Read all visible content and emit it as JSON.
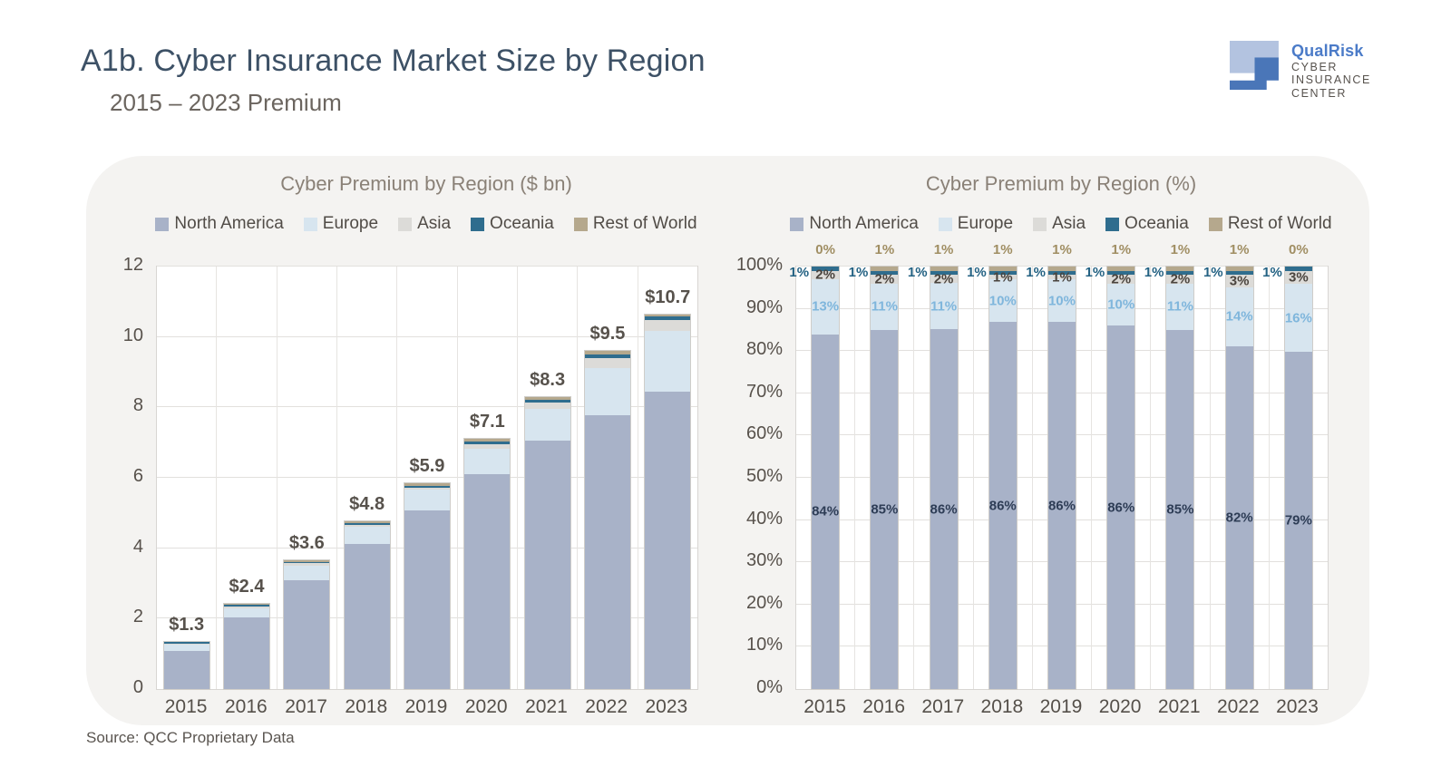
{
  "header": {
    "title": "A1b. Cyber Insurance Market Size by Region",
    "subtitle": "2015 – 2023 Premium"
  },
  "logo": {
    "brand": "QualRisk",
    "lines": [
      "CYBER",
      "INSURANCE",
      "CENTER"
    ],
    "light_color": "#b3c3e0",
    "dark_color": "#4a76b8"
  },
  "source": "Source: QCC Proprietary Data",
  "colors": {
    "series": {
      "North America": "#a8b2c8",
      "Europe": "#d7e5ef",
      "Asia": "#dcdbd8",
      "Oceania": "#2f6d8e",
      "Rest of World": "#b5a88d"
    },
    "labels": {
      "North America": "#2e3d56",
      "Europe": "#7fb6dc",
      "Asia": "#4a443e",
      "Oceania": "#246283",
      "Rest of World": "#a08e63"
    }
  },
  "chart_data": [
    {
      "type": "bar",
      "stacked": true,
      "title": "Cyber Premium by Region ($ bn)",
      "categories": [
        "2015",
        "2016",
        "2017",
        "2018",
        "2019",
        "2020",
        "2021",
        "2022",
        "2023"
      ],
      "legend": [
        "North America",
        "Europe",
        "Asia",
        "Oceania",
        "Rest of World"
      ],
      "legend_position": "top",
      "grid": true,
      "ylim": [
        0,
        12
      ],
      "yticks": [
        0,
        2,
        4,
        6,
        8,
        10,
        12
      ],
      "totals": [
        1.3,
        2.4,
        3.6,
        4.8,
        5.9,
        7.1,
        8.3,
        9.5,
        10.7
      ],
      "total_labels": [
        "$1.3",
        "$2.4",
        "$3.6",
        "$4.8",
        "$5.9",
        "$7.1",
        "$8.3",
        "$9.5",
        "$10.7"
      ],
      "series": [
        {
          "name": "North America",
          "values": [
            1.09,
            2.04,
            3.1,
            4.13,
            5.07,
            6.11,
            7.06,
            7.79,
            8.45
          ]
        },
        {
          "name": "Europe",
          "values": [
            0.17,
            0.26,
            0.4,
            0.48,
            0.59,
            0.71,
            0.91,
            1.33,
            1.71
          ]
        },
        {
          "name": "Asia",
          "values": [
            0.03,
            0.05,
            0.07,
            0.05,
            0.06,
            0.14,
            0.17,
            0.29,
            0.32
          ]
        },
        {
          "name": "Oceania",
          "values": [
            0.01,
            0.02,
            0.04,
            0.05,
            0.06,
            0.07,
            0.08,
            0.1,
            0.11
          ]
        },
        {
          "name": "Rest of World",
          "values": [
            0.0,
            0.02,
            0.04,
            0.05,
            0.06,
            0.07,
            0.08,
            0.09,
            0.05
          ]
        }
      ]
    },
    {
      "type": "bar",
      "stacked": true,
      "percent": true,
      "title": "Cyber Premium by Region (%)",
      "categories": [
        "2015",
        "2016",
        "2017",
        "2018",
        "2019",
        "2020",
        "2021",
        "2022",
        "2023"
      ],
      "legend": [
        "North America",
        "Europe",
        "Asia",
        "Oceania",
        "Rest of World"
      ],
      "legend_position": "top",
      "grid": true,
      "ylim": [
        0,
        100
      ],
      "yticks": [
        "0%",
        "10%",
        "20%",
        "30%",
        "40%",
        "50%",
        "60%",
        "70%",
        "80%",
        "90%",
        "100%"
      ],
      "series": [
        {
          "name": "North America",
          "values": [
            84,
            85,
            86,
            86,
            86,
            86,
            85,
            82,
            79
          ]
        },
        {
          "name": "Europe",
          "values": [
            13,
            11,
            11,
            10,
            10,
            10,
            11,
            14,
            16
          ]
        },
        {
          "name": "Asia",
          "values": [
            2,
            2,
            2,
            1,
            1,
            2,
            2,
            3,
            3
          ]
        },
        {
          "name": "Oceania",
          "values": [
            1,
            1,
            1,
            1,
            1,
            1,
            1,
            1,
            1
          ]
        },
        {
          "name": "Rest of World",
          "values": [
            0,
            1,
            1,
            1,
            1,
            1,
            1,
            1,
            0
          ]
        }
      ]
    }
  ]
}
